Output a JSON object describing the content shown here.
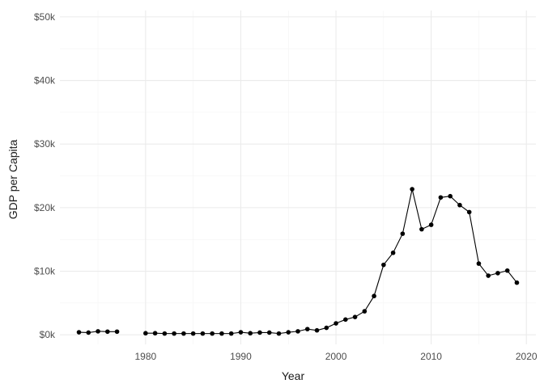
{
  "chart_data": {
    "type": "line",
    "title": "",
    "xlabel": "Year",
    "ylabel": "GDP per Capita",
    "xlim": [
      1971,
      2021
    ],
    "ylim": [
      -1500,
      51000
    ],
    "x_ticks": [
      1980,
      1990,
      2000,
      2010,
      2020
    ],
    "x_tick_labels": [
      "1980",
      "1990",
      "2000",
      "2010",
      "2020"
    ],
    "y_ticks": [
      0,
      10000,
      20000,
      30000,
      40000,
      50000
    ],
    "y_tick_labels": [
      "$0k",
      "$10k",
      "$20k",
      "$30k",
      "$40k",
      "$50k"
    ],
    "grid": true,
    "legend": "none",
    "line_color": "#000000",
    "series": [
      {
        "segments": [
          {
            "x": [
              1973,
              1974,
              1975,
              1976,
              1977
            ],
            "y": [
              400,
              350,
              550,
              500,
              500
            ]
          },
          {
            "x": [
              1980,
              1981,
              1982,
              1983,
              1984,
              1985,
              1986,
              1987,
              1988,
              1989,
              1990,
              1991,
              1992,
              1993,
              1994,
              1995,
              1996,
              1997,
              1998,
              1999,
              2000,
              2001,
              2002,
              2003,
              2004,
              2005,
              2006,
              2007,
              2008,
              2009,
              2010,
              2011,
              2012,
              2013,
              2014,
              2015,
              2016,
              2017,
              2018,
              2019
            ],
            "y": [
              250,
              250,
              200,
              200,
              200,
              200,
              200,
              200,
              200,
              200,
              400,
              250,
              350,
              350,
              200,
              400,
              550,
              900,
              700,
              1100,
              1800,
              2400,
              2800,
              3700,
              6100,
              11000,
              12900,
              15900,
              22900,
              16600,
              17300,
              21600,
              21800,
              20400,
              19300,
              11200,
              9300,
              9700,
              10100,
              8200
            ]
          }
        ]
      }
    ]
  }
}
